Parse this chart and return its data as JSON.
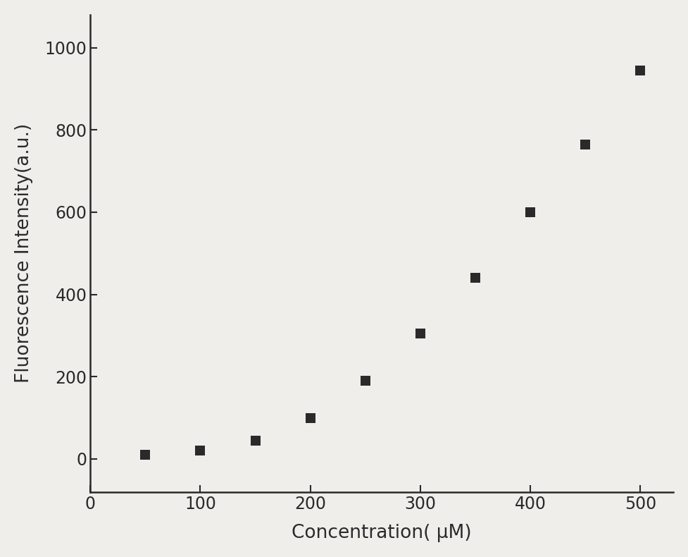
{
  "x": [
    50,
    100,
    150,
    200,
    250,
    300,
    350,
    400,
    450,
    500
  ],
  "y": [
    10,
    20,
    45,
    100,
    190,
    305,
    440,
    600,
    765,
    945
  ],
  "marker": "s",
  "marker_color": "#2a2a2a",
  "marker_size": 110,
  "xlabel": "Concentration（ μM）",
  "ylabel": "Fluorescence Intensity（a.u.）",
  "xlabel_display": "Concentration（ μM）",
  "ylabel_display": "Fluorescence Intensity（a.u.）",
  "xlim": [
    0,
    530
  ],
  "ylim": [
    -80,
    1080
  ],
  "xticks": [
    0,
    100,
    200,
    300,
    400,
    500
  ],
  "yticks": [
    0,
    200,
    400,
    600,
    800,
    1000
  ],
  "background_color": "#f0eeea",
  "axes_color": "#2a2a2a",
  "tick_fontsize": 17,
  "label_fontsize": 19,
  "spine_linewidth": 1.8
}
